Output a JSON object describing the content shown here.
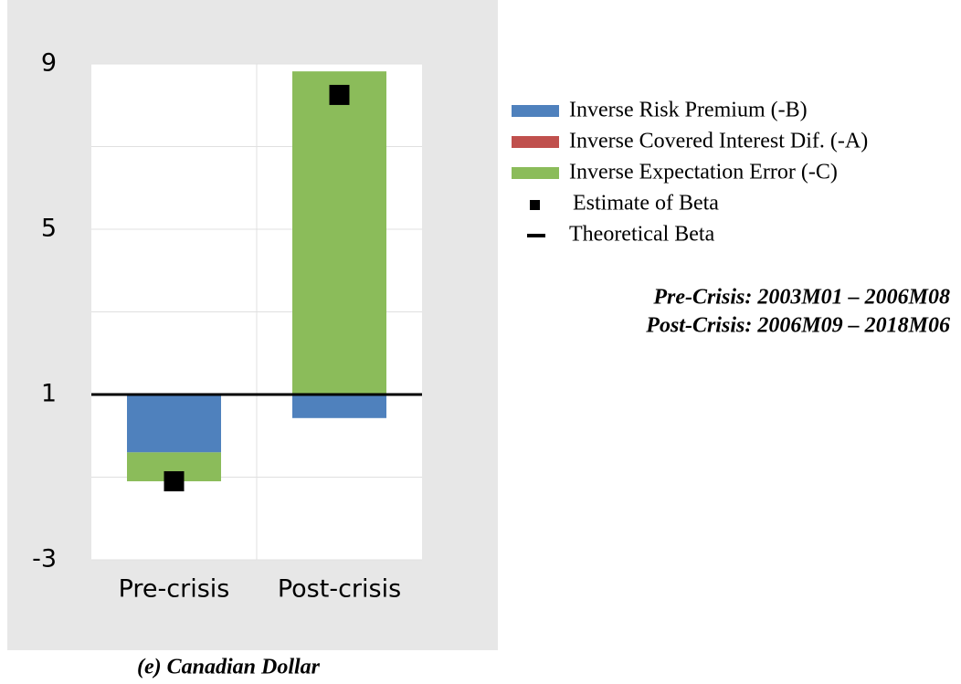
{
  "chart_data": {
    "type": "stacked_bar",
    "caption": "(e) Canadian Dollar",
    "categories": [
      "Pre-crisis",
      "Post-crisis"
    ],
    "baseline": 1,
    "series": [
      {
        "name": "Inverse Risk Premium (-B)",
        "color": "#4f81bd",
        "values": [
          -1.4,
          -0.57
        ]
      },
      {
        "name": "Inverse Covered Interest Dif. (-A)",
        "color": "#c0504d",
        "values": [
          0,
          0
        ]
      },
      {
        "name": "Inverse Expectation Error (-C)",
        "color": "#8bbc5a",
        "values": [
          -0.7,
          7.82
        ]
      }
    ],
    "estimate": {
      "name": "Estimate of Beta",
      "color": "#000000",
      "values": [
        -1.1,
        8.25
      ]
    },
    "theoretical": {
      "name": "Theoretical Beta",
      "color": "#000000",
      "value": 1
    },
    "annotations": [
      "Pre-Crisis: 2003M01 – 2006M08",
      "Post-Crisis: 2006M09 – 2018M06"
    ],
    "ylim": [
      -3,
      9
    ],
    "yticks": [
      -3,
      1,
      5,
      9
    ],
    "minor_yticks": [
      -1,
      3,
      7
    ],
    "grid": true
  }
}
